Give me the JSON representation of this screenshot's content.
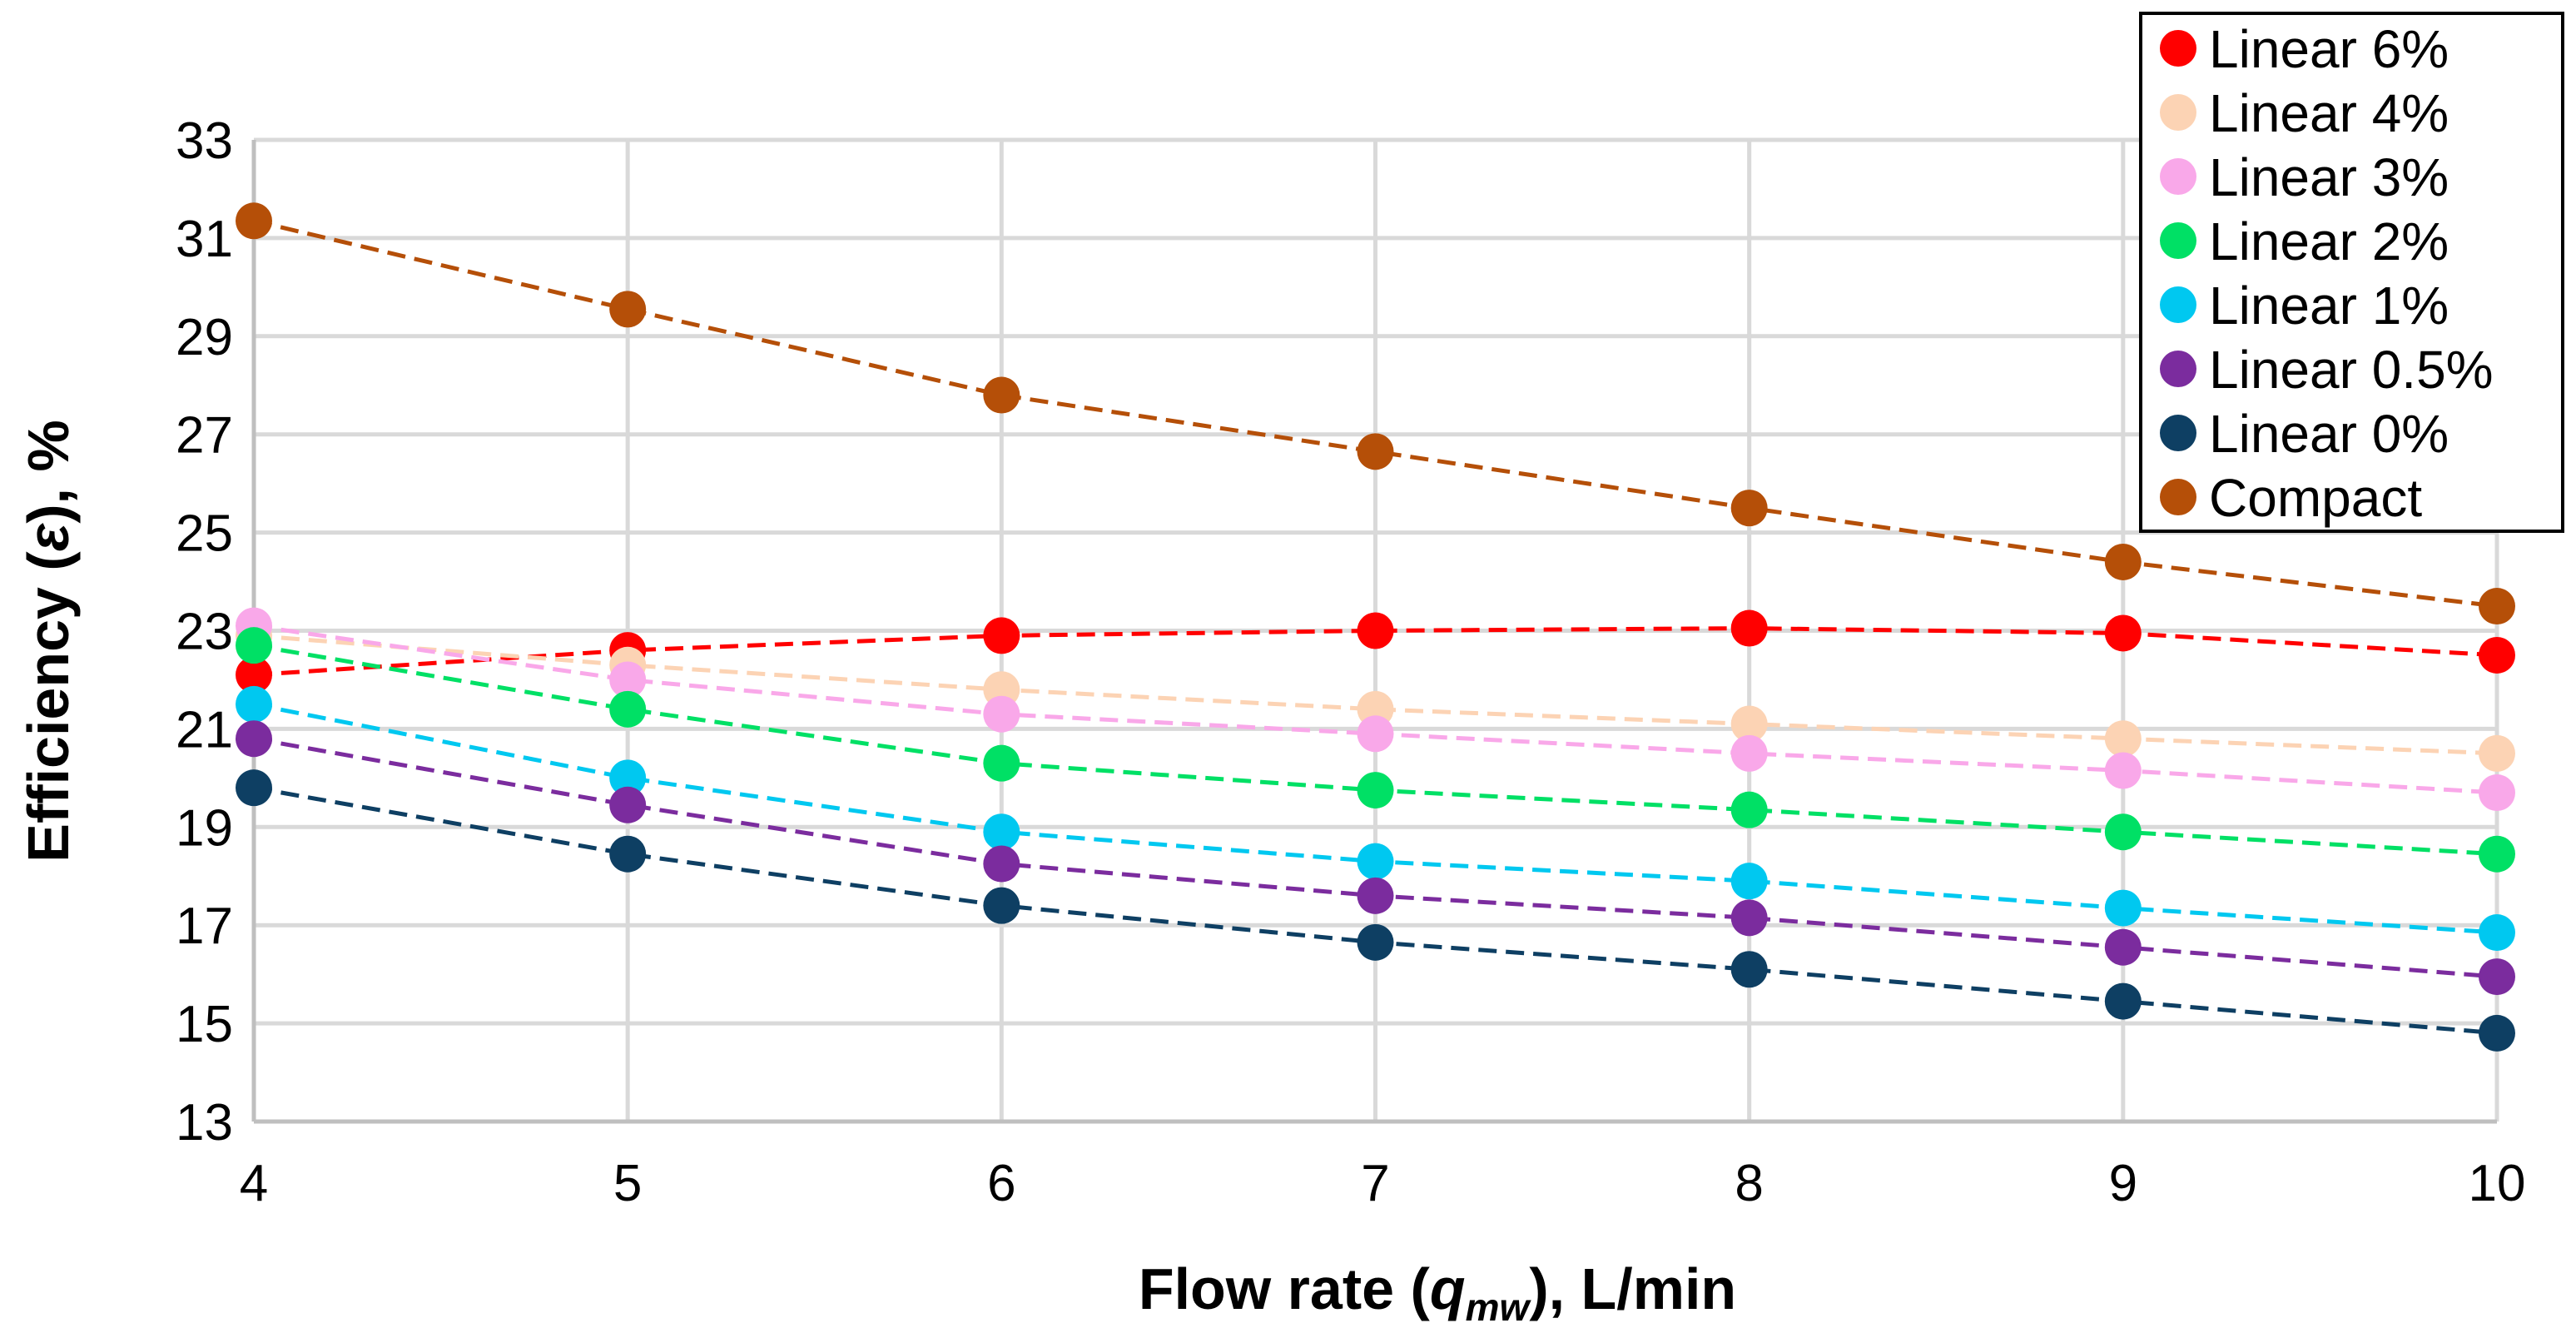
{
  "chart_data": {
    "type": "scatter",
    "connected": true,
    "line_style": "dashed",
    "title": "",
    "xlabel": {
      "main": "Flow rate (",
      "var": "q",
      "sub": "mw",
      "rest": "), L/min"
    },
    "ylabel": {
      "main": "Efficiency (",
      "var": "ε",
      "rest": "), %"
    },
    "xlim": [
      4,
      10
    ],
    "ylim": [
      13,
      33
    ],
    "x_ticks": [
      "4",
      "5",
      "6",
      "7",
      "8",
      "9",
      "10"
    ],
    "y_ticks": [
      "13",
      "15",
      "17",
      "19",
      "21",
      "23",
      "25",
      "27",
      "29",
      "31",
      "33"
    ],
    "grid": true,
    "legend_position": "top-right",
    "x": [
      4,
      5,
      6,
      7,
      8,
      9,
      10
    ],
    "series": [
      {
        "name": "Linear 6%",
        "color": "#ff0000",
        "values": [
          22.1,
          22.6,
          22.9,
          23.0,
          23.05,
          22.95,
          22.5
        ]
      },
      {
        "name": "Linear 4%",
        "color": "#fcd3b4",
        "values": [
          22.9,
          22.3,
          21.8,
          21.4,
          21.1,
          20.8,
          20.5
        ]
      },
      {
        "name": "Linear 3%",
        "color": "#f9a8e9",
        "values": [
          23.1,
          22.0,
          21.3,
          20.9,
          20.5,
          20.15,
          19.7
        ]
      },
      {
        "name": "Linear 2%",
        "color": "#00e065",
        "values": [
          22.7,
          21.4,
          20.3,
          19.75,
          19.35,
          18.9,
          18.45
        ]
      },
      {
        "name": "Linear 1%",
        "color": "#00c8f0",
        "values": [
          21.5,
          20.0,
          18.9,
          18.3,
          17.9,
          17.35,
          16.85
        ]
      },
      {
        "name": "Linear 0.5%",
        "color": "#7b2c9e",
        "values": [
          20.8,
          19.45,
          18.25,
          17.6,
          17.15,
          16.55,
          15.95
        ]
      },
      {
        "name": "Linear 0%",
        "color": "#0e3f63",
        "values": [
          19.8,
          18.45,
          17.4,
          16.65,
          16.1,
          15.45,
          14.8
        ]
      },
      {
        "name": "Compact",
        "color": "#b54f08",
        "values": [
          31.35,
          29.55,
          27.8,
          26.65,
          25.5,
          24.4,
          23.5
        ]
      }
    ]
  }
}
